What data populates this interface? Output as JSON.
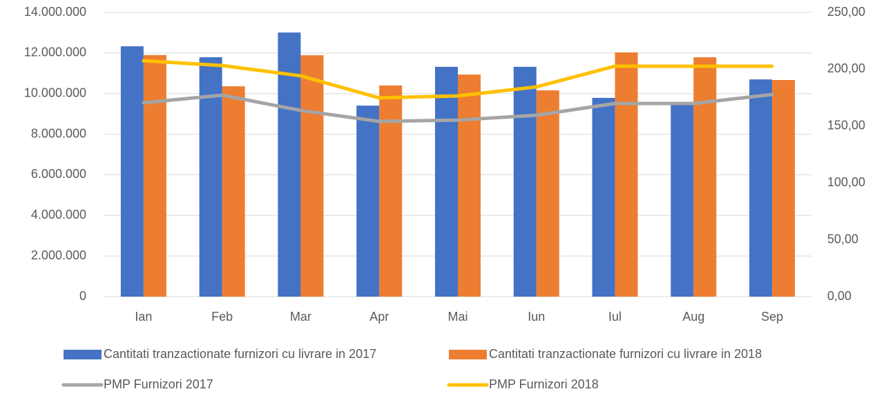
{
  "chart_data": {
    "type": "bar",
    "categories": [
      "Ian",
      "Feb",
      "Mar",
      "Apr",
      "Mai",
      "Iun",
      "Iul",
      "Aug",
      "Sep"
    ],
    "series": [
      {
        "name": "Cantitati tranzactionate furnizori cu livrare in 2017",
        "color": "#4472c4",
        "type": "bar",
        "values": [
          12330000,
          11790000,
          13010000,
          9410000,
          11320000,
          11320000,
          9790000,
          9500000,
          10700000
        ]
      },
      {
        "name": "Cantitati tranzactionate furnizori cu livrare in 2018",
        "color": "#ed7d31",
        "type": "bar",
        "values": [
          11900000,
          10360000,
          11890000,
          10400000,
          10940000,
          10160000,
          12030000,
          11790000,
          10670000
        ]
      },
      {
        "name": "PMP Furnizori 2017",
        "color": "#a5a5a5",
        "type": "line",
        "axis": "y2",
        "values": [
          170.5,
          177.2,
          163.8,
          154.1,
          155.3,
          159.6,
          169.9,
          169.9,
          177.8
        ]
      },
      {
        "name": "PMP Furnizori 2018",
        "color": "#ffc000",
        "type": "line",
        "axis": "y2",
        "values": [
          207.5,
          203.3,
          194.2,
          174.8,
          176.6,
          184.5,
          202.7,
          202.7,
          202.7
        ]
      }
    ],
    "ylim": [
      0,
      14000000
    ],
    "yticks": [
      0,
      {
        "value": 2000000,
        "label": "2.000.000"
      },
      {
        "value": 4000000,
        "label": "4.000.000"
      },
      {
        "value": 6000000,
        "label": "6.000.000"
      },
      {
        "value": 8000000,
        "label": "8.000.000"
      },
      {
        "value": 10000000,
        "label": "10.000.000"
      },
      {
        "value": 12000000,
        "label": "12.000.000"
      },
      {
        "value": 14000000,
        "label": "14.000.000"
      }
    ],
    "y2lim": [
      0,
      250
    ],
    "y2ticks": [
      {
        "value": 0,
        "label": "0,00"
      },
      {
        "value": 50,
        "label": "50,00"
      },
      {
        "value": 100,
        "label": "100,00"
      },
      {
        "value": 150,
        "label": "150,00"
      },
      {
        "value": 200,
        "label": "200,00"
      },
      {
        "value": 250,
        "label": "250,00"
      }
    ],
    "grid": true,
    "legend": "bottom"
  }
}
